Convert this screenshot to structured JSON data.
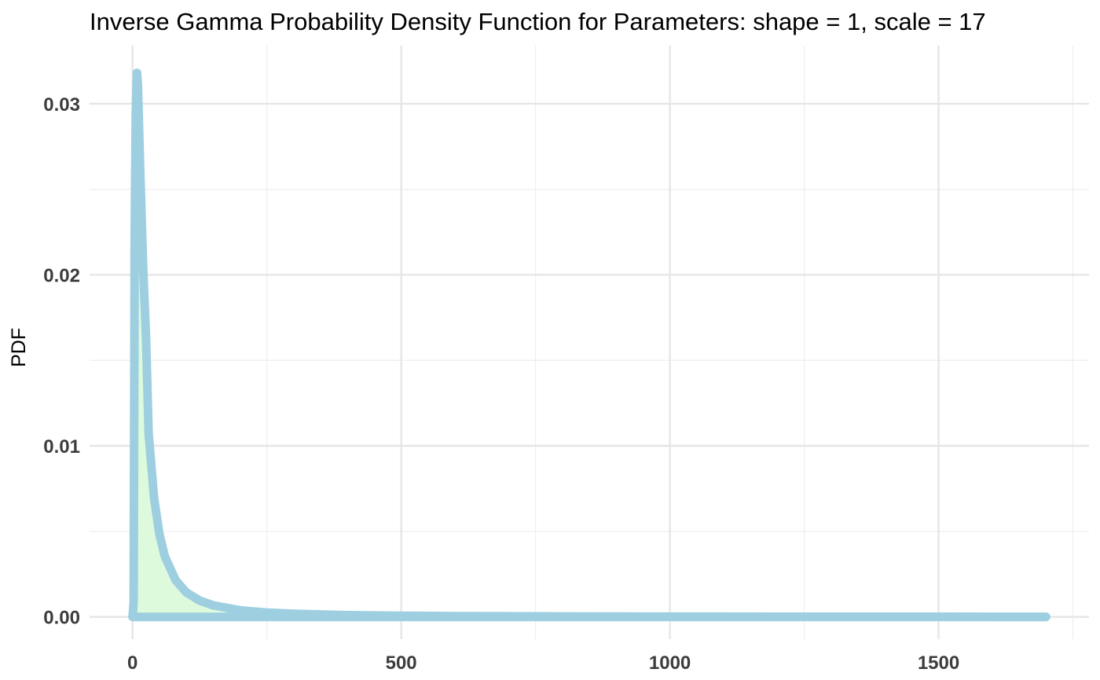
{
  "chart_data": {
    "type": "area",
    "title": "Inverse Gamma Probability Density Function for Parameters: shape = 1, scale = 17",
    "xlabel": "",
    "ylabel": "PDF",
    "xlim": [
      -80,
      1780
    ],
    "ylim": [
      -0.0013,
      0.0334
    ],
    "x_ticks": [
      0,
      500,
      1000,
      1500
    ],
    "x_tick_labels": [
      "0",
      "500",
      "1000",
      "1500"
    ],
    "x_minor_ticks": [
      250,
      750,
      1250,
      1750
    ],
    "y_ticks": [
      0,
      0.01,
      0.02,
      0.03
    ],
    "y_tick_labels": [
      "0.00",
      "0.01",
      "0.02",
      "0.03"
    ],
    "y_minor_ticks": [
      0.005,
      0.015,
      0.025
    ],
    "grid": true,
    "legend": "none",
    "distribution": {
      "family": "inverse-gamma",
      "shape": 1,
      "scale": 17
    },
    "x_range": [
      0,
      1700
    ],
    "series": [
      {
        "x": [
          0,
          2,
          4,
          6,
          8,
          8.5,
          10,
          12,
          15,
          20,
          25,
          30,
          40,
          50,
          60,
          80,
          100,
          125,
          150,
          200,
          250,
          300,
          400,
          500,
          600,
          800,
          1000,
          1200,
          1400,
          1700
        ],
        "y": [
          0,
          0.000853,
          0.0222,
          0.0295,
          0.0318,
          0.0318,
          0.0311,
          0.0287,
          0.0252,
          0.0202,
          0.0164,
          0.0107,
          0.00695,
          0.00484,
          0.00355,
          0.00215,
          0.00143,
          0.000951,
          0.000675,
          0.000388,
          0.000254,
          0.000179,
          0.000102,
          6.57e-05,
          4.59e-05,
          2.6e-05,
          1.67e-05,
          1.16e-05,
          8.5e-06,
          5.8e-06
        ]
      }
    ],
    "colors": {
      "line": "#9ecfe0",
      "fill": "#ddfadd",
      "grid": "#e6e6e6"
    }
  }
}
